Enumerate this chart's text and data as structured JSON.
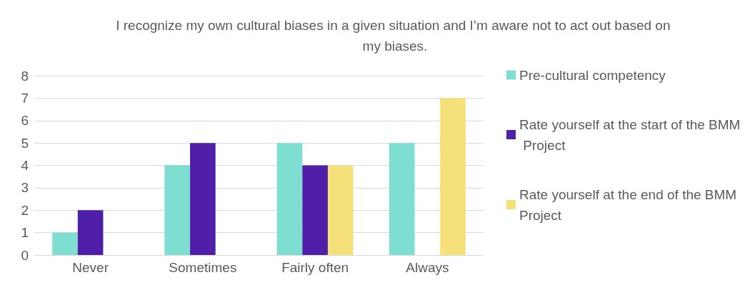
{
  "chart_data": {
    "type": "bar",
    "title": "I recognize my own cultural biases in a given situation and I’m aware not to act out based on my biases.",
    "categories": [
      "Never",
      "Sometimes",
      "Fairly often",
      "Always"
    ],
    "series": [
      {
        "name": "Pre-cultural competency",
        "color": "#7fded2",
        "values": [
          1,
          4,
          5,
          5
        ]
      },
      {
        "name": "Rate yourself at the start of the BMM Project",
        "color": "#4f1fa8",
        "values": [
          2,
          5,
          4,
          0
        ]
      },
      {
        "name": "Rate yourself at the end of the BMM Project",
        "color": "#f6e07a",
        "values": [
          0,
          0,
          4,
          7
        ]
      }
    ],
    "ylim": [
      0,
      8
    ],
    "yticks": [
      0,
      1,
      2,
      3,
      4,
      5,
      6,
      7,
      8
    ],
    "grid": "y",
    "legend": "right"
  }
}
